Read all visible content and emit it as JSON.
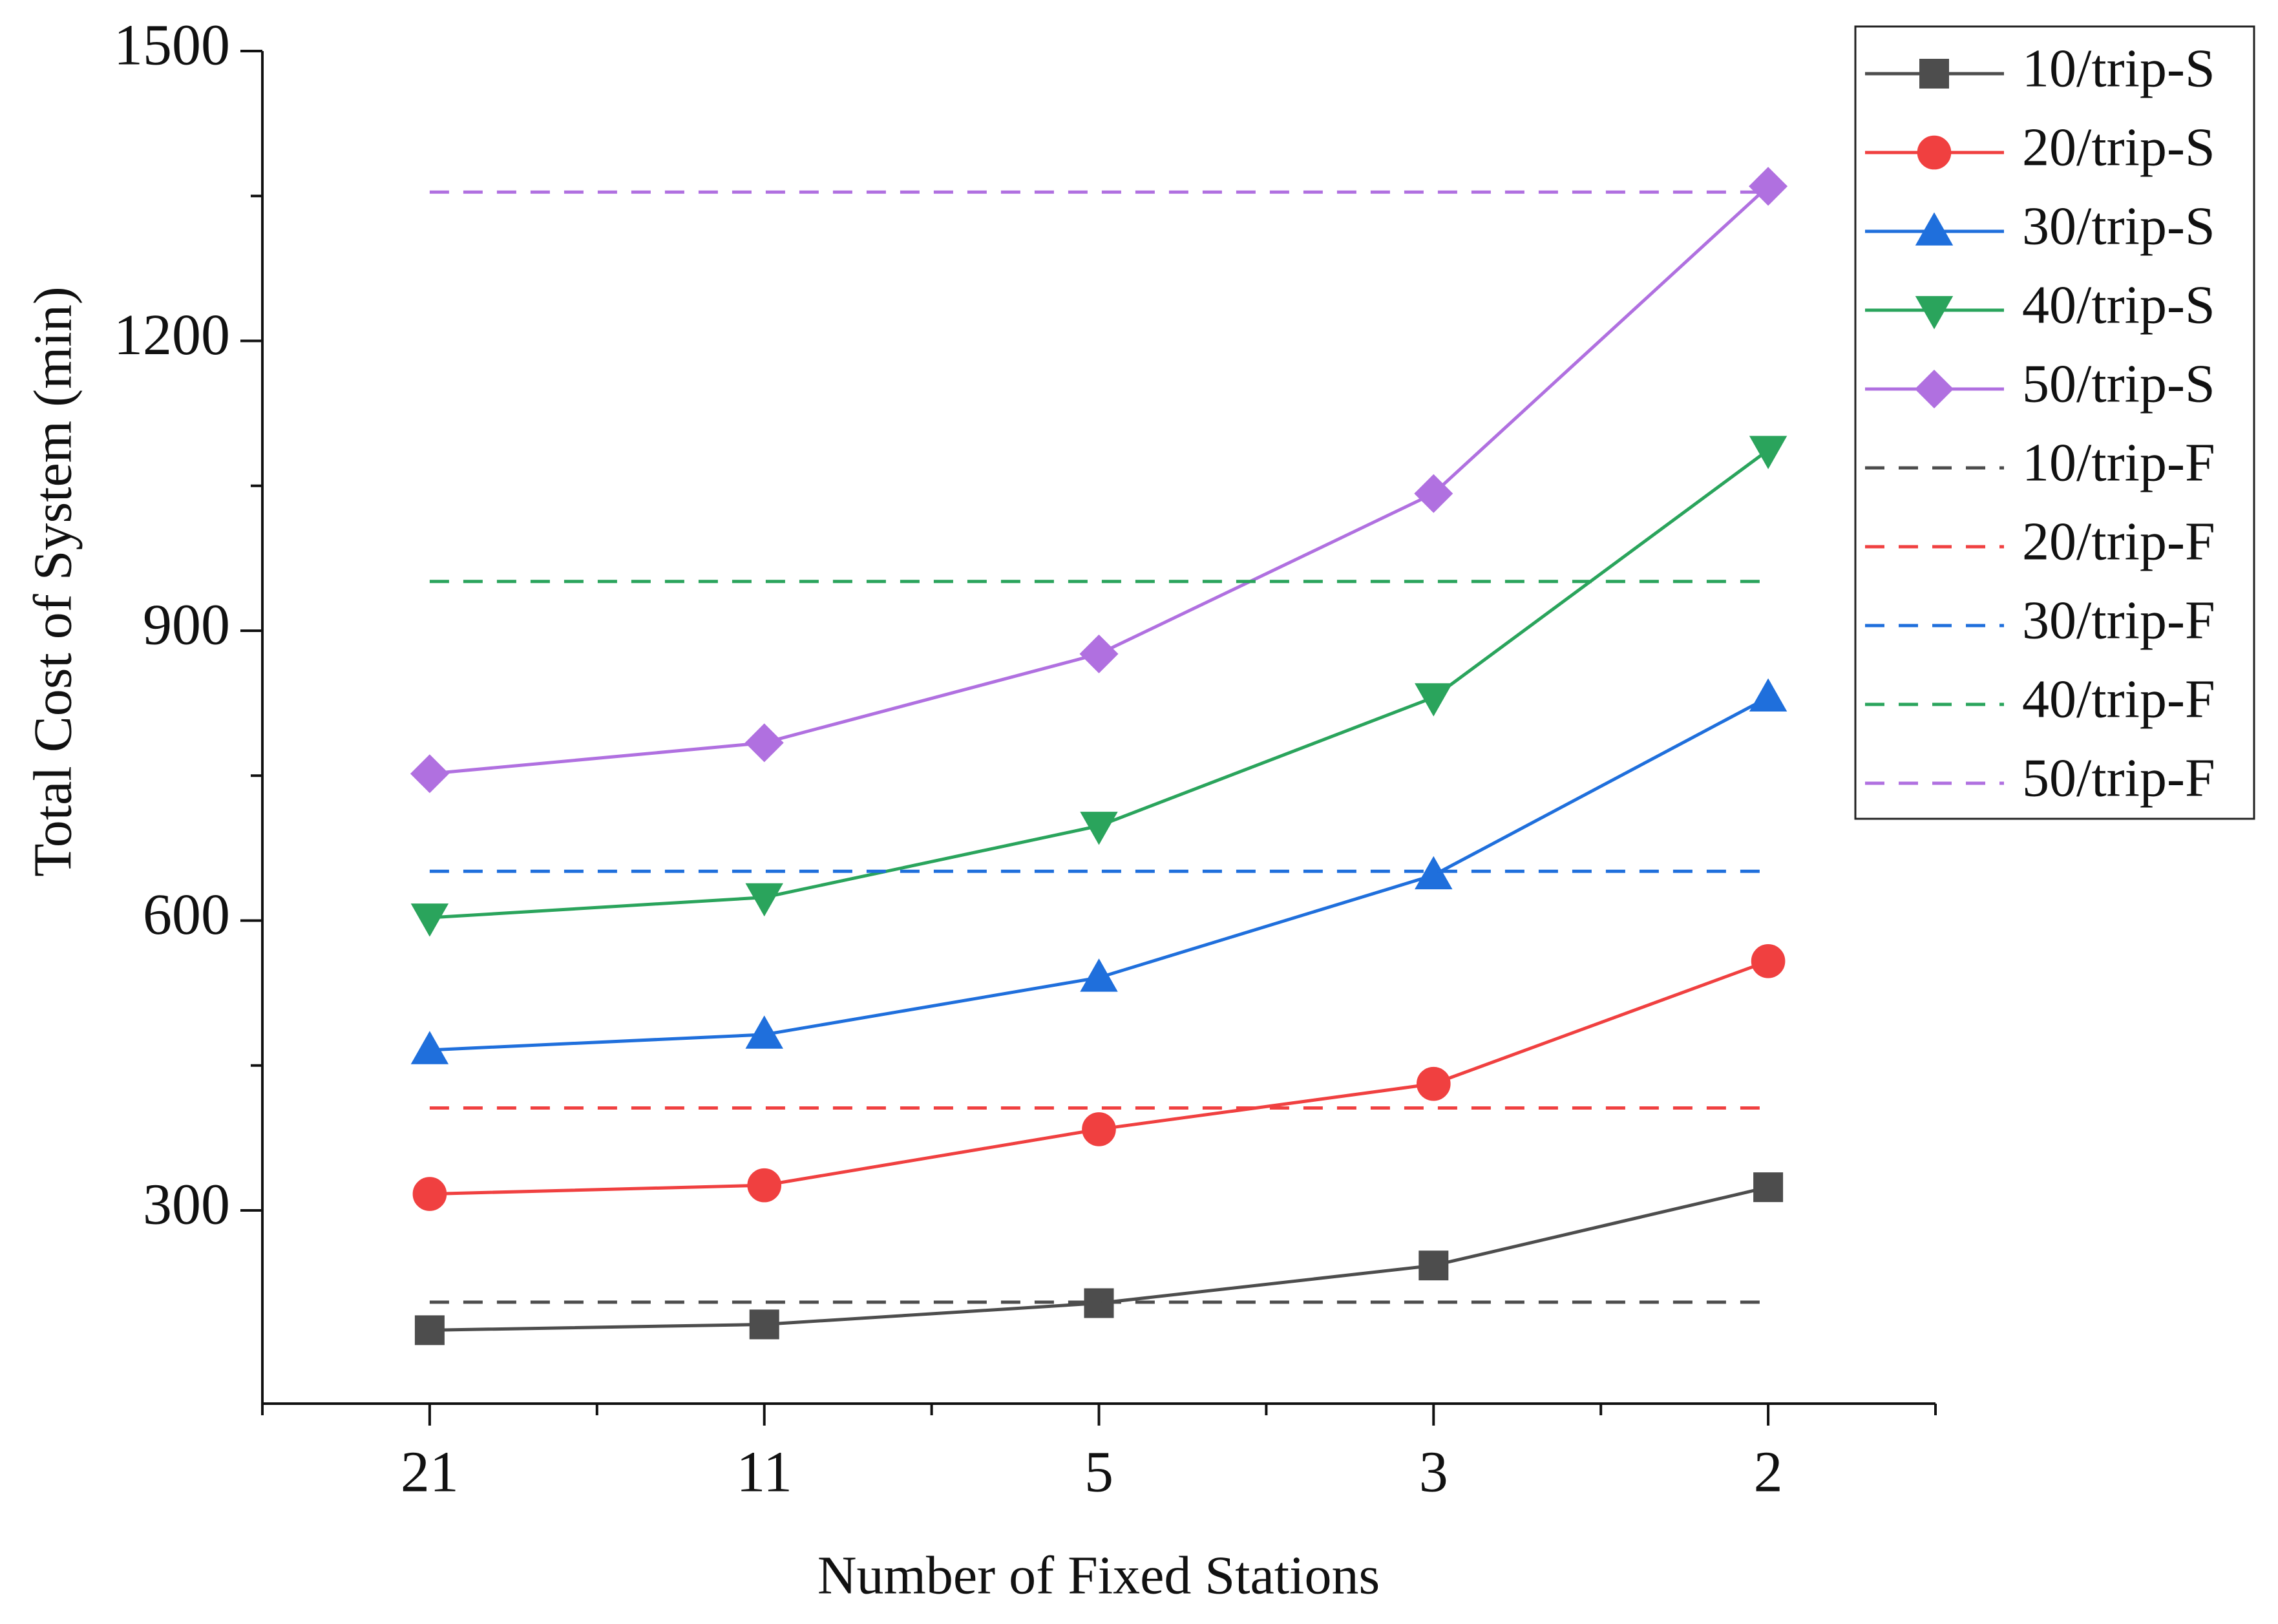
{
  "chart_data": {
    "type": "line",
    "x_label": "Number of Fixed Stations",
    "y_label": "Total Cost of System (min)",
    "categories": [
      "21",
      "11",
      "5",
      "3",
      "2"
    ],
    "ylim": [
      100,
      1500
    ],
    "yticks": [
      300,
      600,
      900,
      1200,
      1500
    ],
    "legend": "upper right",
    "series": [
      {
        "name": "10/trip-S",
        "color": "#4d4d4d",
        "marker": "square",
        "dashed": false,
        "values": [
          176,
          182,
          204,
          243,
          324
        ]
      },
      {
        "name": "20/trip-S",
        "color": "#f04040",
        "marker": "circle",
        "dashed": false,
        "values": [
          317,
          326,
          384,
          431,
          558
        ]
      },
      {
        "name": "30/trip-S",
        "color": "#1f6fdc",
        "marker": "triangle-up",
        "dashed": false,
        "values": [
          466,
          482,
          541,
          647,
          831
        ]
      },
      {
        "name": "40/trip-S",
        "color": "#2aa45c",
        "marker": "triangle-down",
        "dashed": false,
        "values": [
          603,
          624,
          698,
          831,
          1087
        ]
      },
      {
        "name": "50/trip-S",
        "color": "#b070e0",
        "marker": "diamond",
        "dashed": false,
        "values": [
          752,
          784,
          876,
          1042,
          1360
        ]
      },
      {
        "name": "10/trip-F",
        "color": "#4d4d4d",
        "marker": "none",
        "dashed": true,
        "values": [
          205,
          205,
          205,
          205,
          205
        ]
      },
      {
        "name": "20/trip-F",
        "color": "#f04040",
        "marker": "none",
        "dashed": true,
        "values": [
          406,
          406,
          406,
          406,
          406
        ]
      },
      {
        "name": "30/trip-F",
        "color": "#1f6fdc",
        "marker": "none",
        "dashed": true,
        "values": [
          651,
          651,
          651,
          651,
          651
        ]
      },
      {
        "name": "40/trip-F",
        "color": "#2aa45c",
        "marker": "none",
        "dashed": true,
        "values": [
          951,
          951,
          951,
          951,
          951
        ]
      },
      {
        "name": "50/trip-F",
        "color": "#b070e0",
        "marker": "none",
        "dashed": true,
        "values": [
          1354,
          1354,
          1354,
          1354,
          1354
        ]
      }
    ]
  }
}
